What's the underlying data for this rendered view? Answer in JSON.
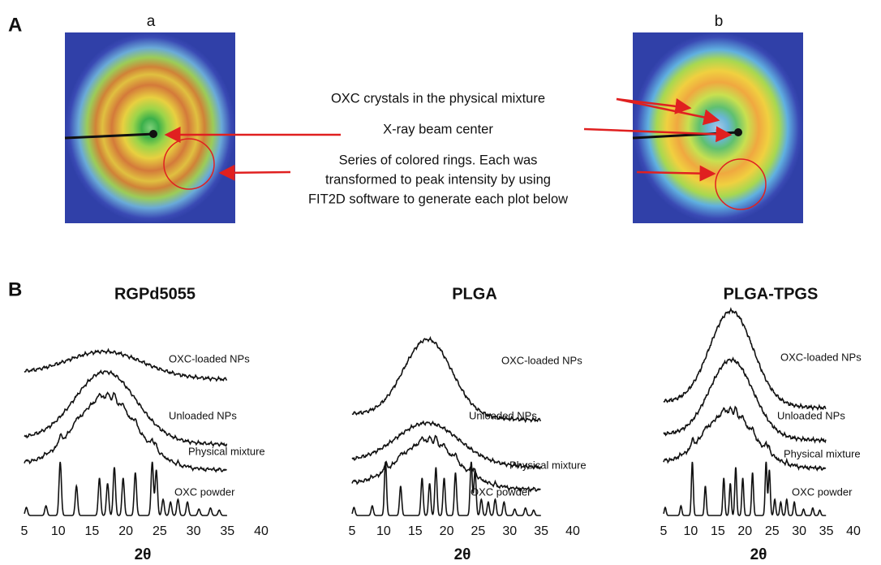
{
  "panel_a": {
    "label": "A",
    "images": [
      {
        "label": "a"
      },
      {
        "label": "b"
      }
    ],
    "annotations": [
      {
        "lines": [
          "OXC crystals in the physical mixture"
        ]
      },
      {
        "lines": [
          "X-ray beam center"
        ]
      },
      {
        "lines": [
          "Series of colored rings. Each was",
          "transformed to peak intensity by using",
          "FIT2D software to generate each plot below"
        ]
      }
    ]
  },
  "panel_b": {
    "label": "B",
    "plots": [
      {
        "title": "RGPd5055",
        "curve_labels": [
          "OXC-loaded NPs",
          "Unloaded NPs",
          "Physical mixture",
          "OXC powder"
        ],
        "xticks": [
          5,
          10,
          15,
          20,
          25,
          30,
          35,
          40
        ],
        "xlabel": "2θ"
      },
      {
        "title": "PLGA",
        "curve_labels": [
          "OXC-loaded NPs",
          "Unloaded NPs",
          "Physical mixture",
          "OXC powder"
        ],
        "xticks": [
          5,
          10,
          15,
          20,
          25,
          30,
          35,
          40
        ],
        "xlabel": "2θ"
      },
      {
        "title": "PLGA-TPGS",
        "curve_labels": [
          "OXC-loaded NPs",
          "Unloaded NPs",
          "Physical mixture",
          "OXC powder"
        ],
        "xticks": [
          5,
          10,
          15,
          20,
          25,
          30,
          35,
          40
        ],
        "xlabel": "2θ"
      }
    ]
  }
}
